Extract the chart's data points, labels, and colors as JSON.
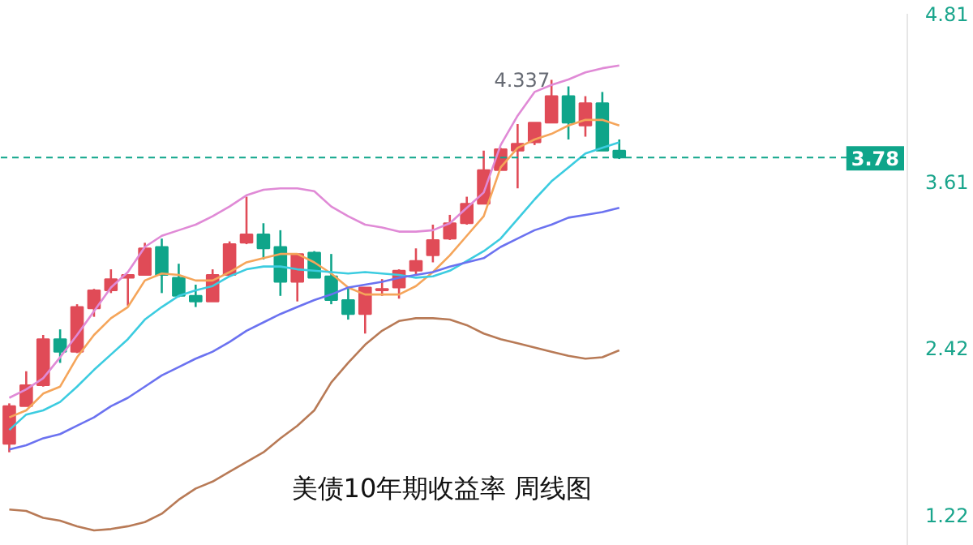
{
  "chart_data": {
    "type": "candlestick",
    "title": "美债10年期收益率 周线图",
    "categories": [
      null,
      null,
      null,
      null,
      null,
      null,
      null,
      null,
      null,
      null,
      null,
      null,
      null,
      null,
      null,
      null,
      null,
      null,
      null,
      null,
      null,
      null,
      null,
      null,
      null,
      null,
      null,
      null,
      null,
      null,
      null,
      null,
      null,
      null,
      null,
      null,
      null
    ],
    "ohlc": [
      [
        1.73,
        2.02,
        1.67,
        2.0
      ],
      [
        2.0,
        2.25,
        2.0,
        2.15
      ],
      [
        2.15,
        2.51,
        2.14,
        2.48
      ],
      [
        2.48,
        2.55,
        2.31,
        2.39
      ],
      [
        2.39,
        2.73,
        2.38,
        2.71
      ],
      [
        2.7,
        2.84,
        2.64,
        2.83
      ],
      [
        2.83,
        2.98,
        2.81,
        2.91
      ],
      [
        2.92,
        2.94,
        2.72,
        2.94
      ],
      [
        2.94,
        3.17,
        2.94,
        3.13
      ],
      [
        3.14,
        3.2,
        2.81,
        2.94
      ],
      [
        2.92,
        3.02,
        2.78,
        2.79
      ],
      [
        2.79,
        2.87,
        2.71,
        2.75
      ],
      [
        2.75,
        2.98,
        2.75,
        2.94
      ],
      [
        2.94,
        3.18,
        2.94,
        3.16
      ],
      [
        3.17,
        3.5,
        3.16,
        3.23
      ],
      [
        3.23,
        3.31,
        3.05,
        3.13
      ],
      [
        3.14,
        3.26,
        2.79,
        2.89
      ],
      [
        2.89,
        3.09,
        2.75,
        3.09
      ],
      [
        3.1,
        3.11,
        2.92,
        2.92
      ],
      [
        2.93,
        3.09,
        2.73,
        2.76
      ],
      [
        2.76,
        2.85,
        2.62,
        2.66
      ],
      [
        2.66,
        2.85,
        2.52,
        2.85
      ],
      [
        2.83,
        2.91,
        2.79,
        2.84
      ],
      [
        2.85,
        2.98,
        2.77,
        2.97
      ],
      [
        2.97,
        3.13,
        2.94,
        3.04
      ],
      [
        3.08,
        3.3,
        3.03,
        3.19
      ],
      [
        3.2,
        3.37,
        3.19,
        3.31
      ],
      [
        3.31,
        3.5,
        3.3,
        3.45
      ],
      [
        3.45,
        3.83,
        3.45,
        3.69
      ],
      [
        3.69,
        3.85,
        3.69,
        3.84
      ],
      [
        3.83,
        4.02,
        3.56,
        3.88
      ],
      [
        3.89,
        4.03,
        3.87,
        4.03
      ],
      [
        4.03,
        4.337,
        4.03,
        4.22
      ],
      [
        4.22,
        4.29,
        3.91,
        4.03
      ],
      [
        4.01,
        4.22,
        3.93,
        4.17
      ],
      [
        4.17,
        4.25,
        3.83,
        3.83
      ],
      [
        3.83,
        3.91,
        3.77,
        3.78
      ]
    ],
    "colors": [
      "#e04b57",
      "#e04b57",
      "#e04b57",
      "#0fa58a",
      "#e04b57",
      "#e04b57",
      "#e04b57",
      "#e04b57",
      "#e04b57",
      "#0fa58a",
      "#0fa58a",
      "#0fa58a",
      "#e04b57",
      "#e04b57",
      "#e04b57",
      "#0fa58a",
      "#0fa58a",
      "#e04b57",
      "#0fa58a",
      "#0fa58a",
      "#0fa58a",
      "#e04b57",
      "#e04b57",
      "#e04b57",
      "#e04b57",
      "#e04b57",
      "#e04b57",
      "#e04b57",
      "#e04b57",
      "#e04b57",
      "#e04b57",
      "#e04b57",
      "#e04b57",
      "#0fa58a",
      "#e04b57",
      "#0fa58a",
      "#0fa58a"
    ],
    "series": [
      {
        "type": "line",
        "color": "#e08ad6",
        "values": [
          2.06,
          2.12,
          2.2,
          2.35,
          2.51,
          2.68,
          2.85,
          2.96,
          3.14,
          3.22,
          3.26,
          3.3,
          3.36,
          3.43,
          3.51,
          3.55,
          3.56,
          3.56,
          3.54,
          3.43,
          3.36,
          3.3,
          3.28,
          3.25,
          3.25,
          3.26,
          3.31,
          3.42,
          3.53,
          3.87,
          4.08,
          4.25,
          4.3,
          4.34,
          4.39,
          4.42,
          4.44
        ]
      },
      {
        "type": "line",
        "color": "#f5a55a",
        "values": [
          1.92,
          1.97,
          2.09,
          2.14,
          2.35,
          2.51,
          2.63,
          2.71,
          2.9,
          2.95,
          2.94,
          2.9,
          2.9,
          2.96,
          3.03,
          3.06,
          3.09,
          3.09,
          3.03,
          2.95,
          2.85,
          2.8,
          2.8,
          2.8,
          2.86,
          2.96,
          3.08,
          3.22,
          3.36,
          3.71,
          3.85,
          3.91,
          3.95,
          4.01,
          4.05,
          4.05,
          4.01
        ]
      },
      {
        "type": "line",
        "color": "#3ccce0",
        "values": [
          1.83,
          1.94,
          1.97,
          2.03,
          2.14,
          2.26,
          2.37,
          2.48,
          2.62,
          2.71,
          2.79,
          2.83,
          2.86,
          2.93,
          2.98,
          3.0,
          3.0,
          2.98,
          2.97,
          2.96,
          2.95,
          2.96,
          2.95,
          2.94,
          2.92,
          2.93,
          2.97,
          3.04,
          3.11,
          3.2,
          3.34,
          3.48,
          3.61,
          3.71,
          3.81,
          3.85,
          3.89
        ]
      },
      {
        "type": "line",
        "color": "#6b72f0",
        "values": [
          1.69,
          1.72,
          1.77,
          1.8,
          1.86,
          1.92,
          2.0,
          2.06,
          2.14,
          2.22,
          2.28,
          2.34,
          2.39,
          2.46,
          2.54,
          2.6,
          2.66,
          2.71,
          2.76,
          2.8,
          2.85,
          2.87,
          2.89,
          2.92,
          2.94,
          2.96,
          3.0,
          3.03,
          3.06,
          3.14,
          3.2,
          3.26,
          3.3,
          3.35,
          3.37,
          3.39,
          3.42
        ]
      },
      {
        "type": "line",
        "color": "#b87a56",
        "values": [
          1.26,
          1.25,
          1.2,
          1.18,
          1.14,
          1.11,
          1.12,
          1.14,
          1.17,
          1.23,
          1.33,
          1.41,
          1.46,
          1.53,
          1.6,
          1.67,
          1.77,
          1.86,
          1.97,
          2.17,
          2.31,
          2.44,
          2.54,
          2.61,
          2.63,
          2.63,
          2.62,
          2.58,
          2.52,
          2.48,
          2.45,
          2.42,
          2.39,
          2.36,
          2.34,
          2.35,
          2.4
        ]
      }
    ],
    "ylim": [
      1.0,
      4.81
    ],
    "yticks": [
      4.81,
      3.61,
      2.42,
      1.22
    ],
    "ref_lines": [
      {
        "axis": "y",
        "value": 3.78,
        "label": "3.78",
        "color": "#0fa58a",
        "line_style": "dashed"
      }
    ],
    "annotations": [
      "4.337"
    ],
    "grid": false
  }
}
